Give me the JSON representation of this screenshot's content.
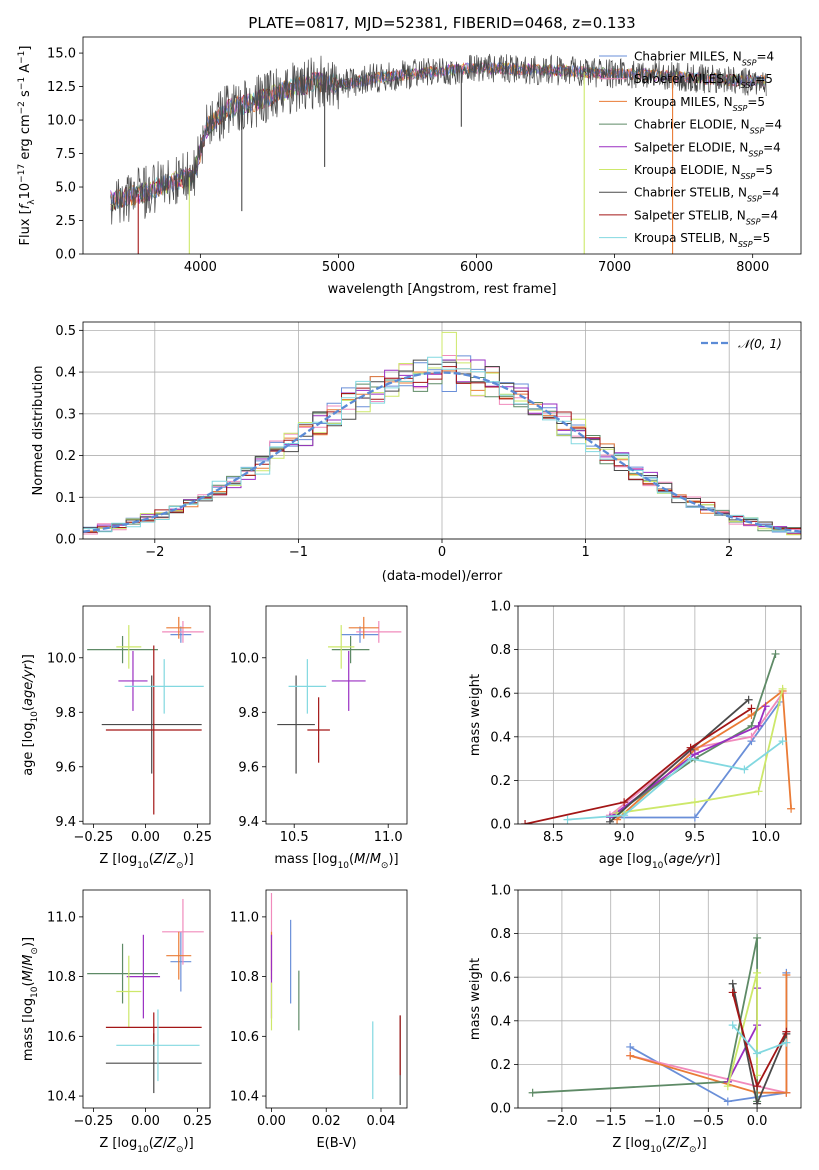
{
  "figure": {
    "title": "PLATE=0817, MJD=52381, FIBERID=0468, z=0.133"
  },
  "models": [
    {
      "name": "Chabrier MILES",
      "nssp": 4,
      "color": "#6a8fd8"
    },
    {
      "name": "Salpeter MILES",
      "nssp": 5,
      "color": "#f08bbc"
    },
    {
      "name": "Kroupa MILES",
      "nssp": 5,
      "color": "#ea7b36"
    },
    {
      "name": "Chabrier ELODIE",
      "nssp": 4,
      "color": "#5e8a66"
    },
    {
      "name": "Salpeter ELODIE",
      "nssp": 4,
      "color": "#9a2fc2"
    },
    {
      "name": "Kroupa ELODIE",
      "nssp": 5,
      "color": "#cde86a"
    },
    {
      "name": "Chabrier STELIB",
      "nssp": 4,
      "color": "#4a4a4a"
    },
    {
      "name": "Salpeter STELIB",
      "nssp": 4,
      "color": "#a31616"
    },
    {
      "name": "Kroupa STELIB",
      "nssp": 5,
      "color": "#82d8e0"
    }
  ],
  "chart_data": [
    {
      "id": "spectrum",
      "type": "line",
      "title": "PLATE=0817, MJD=52381, FIBERID=0468, z=0.133",
      "xlabel": "wavelength [Angstrom, rest frame]",
      "ylabel": "Flux [f_λ 10^-17 erg cm^-2 s^-1 A^-1]",
      "xlim": [
        3150,
        8350
      ],
      "ylim": [
        0,
        16.2
      ],
      "xticks": [
        4000,
        5000,
        6000,
        7000,
        8000
      ],
      "yticks": [
        0.0,
        2.5,
        5.0,
        7.5,
        10.0,
        12.5,
        15.0
      ],
      "continuum": {
        "x": [
          3350,
          3600,
          3800,
          3950,
          4050,
          4200,
          4400,
          4700,
          4850,
          5000,
          5300,
          5700,
          6000,
          6300,
          6600,
          6900,
          7200,
          7500,
          7800,
          8100
        ],
        "y": [
          4.0,
          4.6,
          5.4,
          5.8,
          9.5,
          10.8,
          11.4,
          12.5,
          12.9,
          12.6,
          13.2,
          13.6,
          13.9,
          13.8,
          13.7,
          13.5,
          13.4,
          13.2,
          13.0,
          12.9
        ]
      },
      "dips": [
        {
          "x": 3550,
          "to": 0.0,
          "color": "#a31616"
        },
        {
          "x": 3920,
          "to": 0.0,
          "color": "#cde86a"
        },
        {
          "x": 4300,
          "to": 3.2,
          "color": "#4a4a4a"
        },
        {
          "x": 4900,
          "to": 6.5,
          "color": "#4a4a4a"
        },
        {
          "x": 5890,
          "to": 9.5,
          "color": "#4a4a4a"
        },
        {
          "x": 6780,
          "to": 0.0,
          "color": "#cde86a"
        },
        {
          "x": 7420,
          "to": 0.0,
          "color": "#ea7b36"
        }
      ],
      "legend_position": "upper right"
    },
    {
      "id": "residual-histogram",
      "type": "histogram",
      "xlabel": "(data-model)/error",
      "ylabel": "Normed distribution",
      "xlim": [
        -2.5,
        2.5
      ],
      "ylim": [
        0,
        0.52
      ],
      "xticks": [
        -2,
        -1,
        0,
        1,
        2
      ],
      "xtick_labels": [
        "−2",
        "−1",
        "0",
        "1",
        "2"
      ],
      "yticks": [
        0.0,
        0.1,
        0.2,
        0.3,
        0.4,
        0.5
      ],
      "bin_width": 0.1,
      "grid": true,
      "gaussian": {
        "label": "𝒩(0, 1)",
        "mean": 0,
        "sigma": 1,
        "color": "#5b8bd6"
      },
      "peak_bins": [
        {
          "series": "Kroupa ELODIE",
          "x": 0.05,
          "value": 0.495
        }
      ],
      "legend_position": "upper right"
    },
    {
      "id": "age-vs-metallicity",
      "type": "errorbar",
      "xlabel": "Z [log10(Z/Z⊙)]",
      "ylabel": "age [log10(age/yr)]",
      "xlim": [
        -0.3,
        0.31
      ],
      "ylim": [
        9.39,
        10.19
      ],
      "xticks": [
        -0.25,
        0.0,
        0.25
      ],
      "xtick_labels": [
        "−0.25",
        "0.00",
        "0.25"
      ],
      "yticks": [
        9.4,
        9.6,
        9.8,
        10.0
      ],
      "points": [
        {
          "model": "Chabrier MILES",
          "x": 0.17,
          "xerr": 0.05,
          "y": 10.085,
          "yerr": 0.03
        },
        {
          "model": "Salpeter MILES",
          "x": 0.18,
          "xerr": 0.1,
          "y": 10.095,
          "yerr": 0.04
        },
        {
          "model": "Kroupa MILES",
          "x": 0.16,
          "xerr": 0.06,
          "y": 10.11,
          "yerr": 0.04
        },
        {
          "model": "Chabrier ELODIE",
          "x": -0.11,
          "xerr": 0.17,
          "y": 10.03,
          "yerr": 0.05
        },
        {
          "model": "Salpeter ELODIE",
          "x": -0.06,
          "xerr": 0.07,
          "y": 9.915,
          "yerr": 0.11
        },
        {
          "model": "Kroupa ELODIE",
          "x": -0.08,
          "xerr": 0.06,
          "y": 10.04,
          "yerr": 0.08
        },
        {
          "model": "Chabrier STELIB",
          "x": 0.03,
          "xerr": 0.24,
          "y": 9.755,
          "yerr": 0.18
        },
        {
          "model": "Salpeter STELIB",
          "x": 0.04,
          "xerr": 0.23,
          "y": 9.735,
          "yerr": 0.31
        },
        {
          "model": "Kroupa STELIB",
          "x": 0.09,
          "xerr": 0.19,
          "y": 9.895,
          "yerr": 0.1
        }
      ]
    },
    {
      "id": "age-vs-mass",
      "type": "errorbar",
      "xlabel": "mass [log10(M/M⊙)]",
      "ylabel": "",
      "xlim": [
        10.35,
        11.1
      ],
      "ylim": [
        9.39,
        10.19
      ],
      "xticks": [
        10.5,
        11.0
      ],
      "xtick_labels": [
        "10.5",
        "11.0"
      ],
      "yticks": [
        9.4,
        9.6,
        9.8,
        10.0
      ],
      "points": [
        {
          "model": "Chabrier MILES",
          "x": 10.85,
          "xerr": 0.1,
          "y": 10.085,
          "yerr": 0.03
        },
        {
          "model": "Salpeter MILES",
          "x": 10.95,
          "xerr": 0.12,
          "y": 10.095,
          "yerr": 0.04
        },
        {
          "model": "Kroupa MILES",
          "x": 10.87,
          "xerr": 0.08,
          "y": 10.11,
          "yerr": 0.04
        },
        {
          "model": "Chabrier ELODIE",
          "x": 10.8,
          "xerr": 0.1,
          "y": 10.03,
          "yerr": 0.05
        },
        {
          "model": "Salpeter ELODIE",
          "x": 10.79,
          "xerr": 0.09,
          "y": 9.915,
          "yerr": 0.11
        },
        {
          "model": "Kroupa ELODIE",
          "x": 10.75,
          "xerr": 0.07,
          "y": 10.04,
          "yerr": 0.08
        },
        {
          "model": "Chabrier STELIB",
          "x": 10.51,
          "xerr": 0.1,
          "y": 9.755,
          "yerr": 0.18
        },
        {
          "model": "Salpeter STELIB",
          "x": 10.63,
          "xerr": 0.06,
          "y": 9.735,
          "yerr": 0.12
        },
        {
          "model": "Kroupa STELIB",
          "x": 10.57,
          "xerr": 0.1,
          "y": 9.895,
          "yerr": 0.1
        }
      ]
    },
    {
      "id": "weight-vs-age",
      "type": "line",
      "xlabel": "age  [log10(age/yr)]",
      "ylabel": "mass weight",
      "xlim": [
        8.25,
        10.25
      ],
      "ylim": [
        0,
        1
      ],
      "xticks": [
        8.5,
        9.0,
        9.5,
        10.0
      ],
      "xtick_labels": [
        "8.5",
        "9.0",
        "9.5",
        "10.0"
      ],
      "yticks": [
        0.0,
        0.2,
        0.4,
        0.6,
        0.8,
        1.0
      ],
      "grid": true,
      "series": [
        {
          "model": "Chabrier MILES",
          "x": [
            8.9,
            9.5,
            9.9,
            10.1
          ],
          "y": [
            0.03,
            0.03,
            0.38,
            0.56
          ]
        },
        {
          "model": "Salpeter MILES",
          "x": [
            8.9,
            9.5,
            9.9,
            10.12
          ],
          "y": [
            0.04,
            0.35,
            0.4,
            0.6
          ]
        },
        {
          "model": "Kroupa MILES",
          "x": [
            8.95,
            9.5,
            9.9,
            10.12,
            10.18
          ],
          "y": [
            0.02,
            0.34,
            0.5,
            0.61,
            0.07
          ]
        },
        {
          "model": "Chabrier ELODIE",
          "x": [
            8.9,
            9.5,
            9.9,
            10.07
          ],
          "y": [
            0.03,
            0.3,
            0.45,
            0.78
          ]
        },
        {
          "model": "Salpeter ELODIE",
          "x": [
            8.9,
            9.5,
            9.95,
            10.0
          ],
          "y": [
            0.03,
            0.32,
            0.45,
            0.54
          ]
        },
        {
          "model": "Kroupa ELODIE",
          "x": [
            8.95,
            9.5,
            9.95,
            10.12
          ],
          "y": [
            0.05,
            0.1,
            0.15,
            0.62
          ]
        },
        {
          "model": "Chabrier STELIB",
          "x": [
            8.9,
            9.47,
            9.88
          ],
          "y": [
            0.01,
            0.34,
            0.57
          ]
        },
        {
          "model": "Salpeter STELIB",
          "x": [
            8.3,
            9.0,
            9.47,
            9.9
          ],
          "y": [
            0.0,
            0.1,
            0.35,
            0.53
          ]
        },
        {
          "model": "Kroupa STELIB",
          "x": [
            8.6,
            9.0,
            9.47,
            9.85,
            10.12
          ],
          "y": [
            0.02,
            0.04,
            0.3,
            0.25,
            0.38
          ]
        }
      ]
    },
    {
      "id": "mass-vs-metallicity",
      "type": "errorbar",
      "xlabel": "Z [log10(Z/Z⊙)]",
      "ylabel": "mass [log10(M/M⊙)]",
      "xlim": [
        -0.3,
        0.31
      ],
      "ylim": [
        10.36,
        11.09
      ],
      "xticks": [
        -0.25,
        0.0,
        0.25
      ],
      "xtick_labels": [
        "−0.25",
        "0.00",
        "0.25"
      ],
      "yticks": [
        10.4,
        10.6,
        10.8,
        11.0
      ],
      "points": [
        {
          "model": "Chabrier MILES",
          "x": 0.17,
          "xerr": 0.05,
          "y": 10.85,
          "yerr": 0.1
        },
        {
          "model": "Salpeter MILES",
          "x": 0.18,
          "xerr": 0.1,
          "y": 10.95,
          "yerr": 0.11
        },
        {
          "model": "Kroupa MILES",
          "x": 0.16,
          "xerr": 0.06,
          "y": 10.87,
          "yerr": 0.08
        },
        {
          "model": "Chabrier ELODIE",
          "x": -0.11,
          "xerr": 0.17,
          "y": 10.81,
          "yerr": 0.1
        },
        {
          "model": "Salpeter ELODIE",
          "x": -0.01,
          "xerr": 0.08,
          "y": 10.8,
          "yerr": 0.14
        },
        {
          "model": "Kroupa ELODIE",
          "x": -0.08,
          "xerr": 0.06,
          "y": 10.75,
          "yerr": 0.12
        },
        {
          "model": "Chabrier STELIB",
          "x": 0.04,
          "xerr": 0.23,
          "y": 10.51,
          "yerr": 0.1
        },
        {
          "model": "Salpeter STELIB",
          "x": 0.04,
          "xerr": 0.23,
          "y": 10.63,
          "yerr": 0.05
        },
        {
          "model": "Kroupa STELIB",
          "x": 0.06,
          "xerr": 0.2,
          "y": 10.57,
          "yerr": 0.12
        }
      ]
    },
    {
      "id": "mass-vs-ebv",
      "type": "errorbar",
      "xlabel": "E(B-V)",
      "ylabel": "",
      "xlim": [
        -0.002,
        0.0495
      ],
      "ylim": [
        10.36,
        11.09
      ],
      "xticks": [
        0.0,
        0.02,
        0.04
      ],
      "xtick_labels": [
        "0.00",
        "0.02",
        "0.04"
      ],
      "yticks": [
        10.4,
        10.6,
        10.8,
        11.0
      ],
      "points": [
        {
          "model": "Chabrier MILES",
          "x": 0.007,
          "y": 10.85,
          "yerr": 0.14
        },
        {
          "model": "Salpeter MILES",
          "x": 0.0,
          "y": 10.95,
          "yerr": 0.13
        },
        {
          "model": "Kroupa MILES",
          "x": 0.0,
          "y": 10.87,
          "yerr": 0.08
        },
        {
          "model": "Chabrier ELODIE",
          "x": 0.01,
          "y": 10.72,
          "yerr": 0.1
        },
        {
          "model": "Salpeter ELODIE",
          "x": 0.0,
          "y": 10.8,
          "yerr": 0.14
        },
        {
          "model": "Kroupa ELODIE",
          "x": 0.0,
          "y": 10.7,
          "yerr": 0.08
        },
        {
          "model": "Chabrier STELIB",
          "x": 0.047,
          "y": 10.52,
          "yerr": 0.15
        },
        {
          "model": "Salpeter STELIB",
          "x": 0.047,
          "y": 10.57,
          "yerr": 0.1
        },
        {
          "model": "Kroupa STELIB",
          "x": 0.037,
          "y": 10.52,
          "yerr": 0.13
        }
      ]
    },
    {
      "id": "weight-vs-metallicity",
      "type": "line",
      "xlabel": "Z [log10(Z/Z⊙)]",
      "ylabel": "mass weight",
      "xlim": [
        -2.45,
        0.45
      ],
      "ylim": [
        0,
        1
      ],
      "xticks": [
        -2.0,
        -1.5,
        -1.0,
        -0.5,
        0.0
      ],
      "xtick_labels": [
        "−2.0",
        "−1.5",
        "−1.0",
        "−0.5",
        "0.0"
      ],
      "yticks": [
        0.0,
        0.2,
        0.4,
        0.6,
        0.8,
        1.0
      ],
      "grid": true,
      "series": [
        {
          "model": "Chabrier MILES",
          "x": [
            -1.3,
            -0.3,
            0.3,
            0.3
          ],
          "y": [
            0.28,
            0.03,
            0.07,
            0.62
          ]
        },
        {
          "model": "Salpeter MILES",
          "x": [
            -1.3,
            0.0,
            0.3,
            0.3
          ],
          "y": [
            0.24,
            0.1,
            0.07,
            0.35
          ]
        },
        {
          "model": "Kroupa MILES",
          "x": [
            -1.3,
            0.0,
            0.3,
            0.3
          ],
          "y": [
            0.24,
            0.07,
            0.07,
            0.61
          ]
        },
        {
          "model": "Chabrier ELODIE",
          "x": [
            -2.3,
            -0.3,
            0.0,
            0.0
          ],
          "y": [
            0.07,
            0.12,
            0.78,
            0.03
          ]
        },
        {
          "model": "Salpeter ELODIE",
          "x": [
            -0.3,
            0.0,
            0.0
          ],
          "y": [
            0.12,
            0.38,
            0.55
          ]
        },
        {
          "model": "Kroupa ELODIE",
          "x": [
            -0.3,
            0.0,
            0.0
          ],
          "y": [
            0.1,
            0.62,
            0.15
          ]
        },
        {
          "model": "Chabrier STELIB",
          "x": [
            -0.25,
            0.0,
            0.3
          ],
          "y": [
            0.57,
            0.02,
            0.34
          ]
        },
        {
          "model": "Salpeter STELIB",
          "x": [
            -0.25,
            0.0,
            0.3
          ],
          "y": [
            0.53,
            0.1,
            0.35
          ]
        },
        {
          "model": "Kroupa STELIB",
          "x": [
            -0.25,
            0.0,
            0.3
          ],
          "y": [
            0.38,
            0.25,
            0.3
          ]
        }
      ]
    }
  ]
}
